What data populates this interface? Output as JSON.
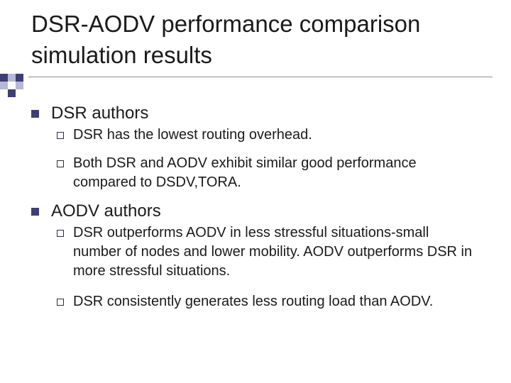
{
  "slide": {
    "title": "DSR-AODV performance comparison simulation results",
    "sections": [
      {
        "heading": "DSR authors",
        "points": [
          "DSR has the lowest routing overhead.",
          "Both DSR and AODV exhibit similar good performance compared to DSDV,TORA."
        ]
      },
      {
        "heading": "AODV authors",
        "points": [
          "DSR outperforms AODV in less stressful situations-small number of nodes and lower mobility.  AODV outperforms DSR in more stressful situations.",
          "DSR consistently generates less routing load than AODV."
        ]
      }
    ]
  },
  "colors": {
    "accent_dark": "#3d3f73",
    "accent_light": "#b6b8d6",
    "text": "#1a1a1a"
  }
}
